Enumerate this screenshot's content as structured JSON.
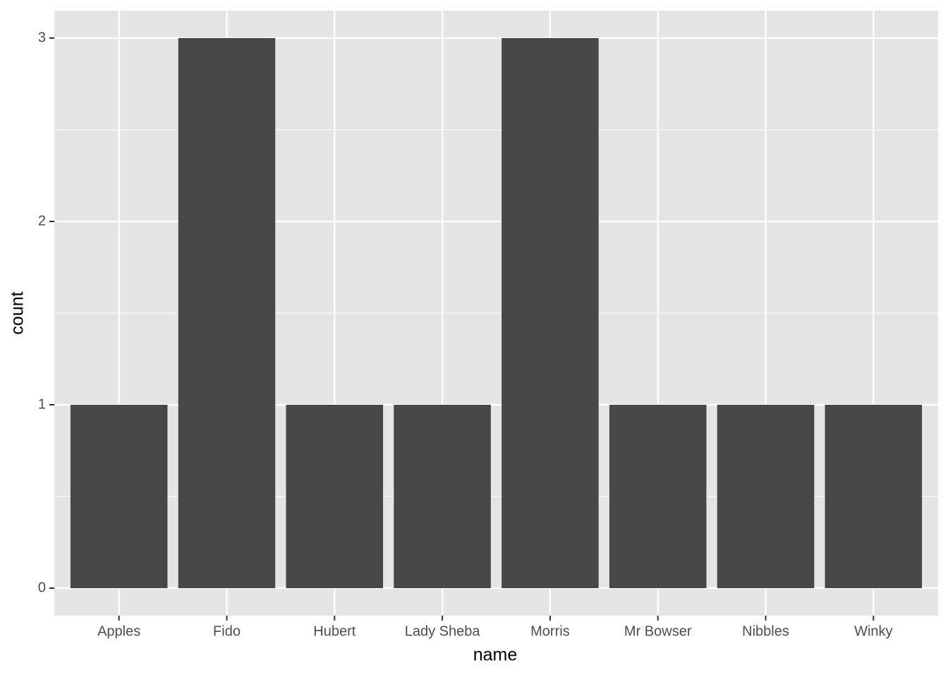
{
  "chart_data": {
    "type": "bar",
    "x_label": "name",
    "y_label": "count",
    "categories": [
      "Apples",
      "Fido",
      "Hubert",
      "Lady Sheba",
      "Morris",
      "Mr Bowser",
      "Nibbles",
      "Winky"
    ],
    "values": [
      1,
      3,
      1,
      1,
      3,
      1,
      1,
      1
    ],
    "color": "#474747",
    "ylim": [
      -0.15,
      3.15
    ],
    "yticks": [
      0,
      1,
      2,
      3
    ],
    "grid": true
  }
}
